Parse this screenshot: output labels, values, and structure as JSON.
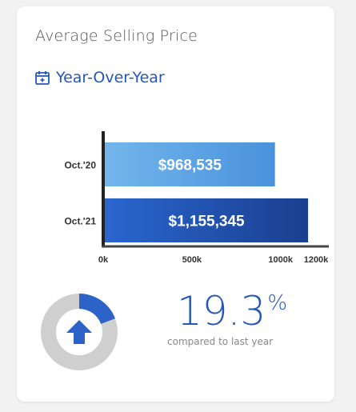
{
  "card": {
    "title": "Average Selling Price",
    "period": "Year-Over-Year"
  },
  "chart_data": {
    "type": "bar",
    "orientation": "horizontal",
    "categories": [
      "Oct.'20",
      "Oct.'21"
    ],
    "values": [
      968535,
      1155345
    ],
    "data_labels": [
      "$968,535",
      "$1,155,345"
    ],
    "tick_labels": [
      "0k",
      "500k",
      "1000k",
      "1200k"
    ],
    "ticks": [
      0,
      500000,
      1000000,
      1200000
    ],
    "xlim": [
      0,
      1200000
    ],
    "grid": false,
    "colors": {
      "oct20": [
        "#72b6ec",
        "#4a92dc"
      ],
      "oct21": [
        "#2a66cf",
        "#1a3f8f"
      ]
    }
  },
  "change": {
    "value": "19.3",
    "unit": "%",
    "caption": "compared to last year",
    "fraction": 0.193,
    "direction": "up",
    "colors": {
      "fill": "#2d63c8",
      "track": "#cfcfcf",
      "arrow": "#2d63c8"
    }
  }
}
